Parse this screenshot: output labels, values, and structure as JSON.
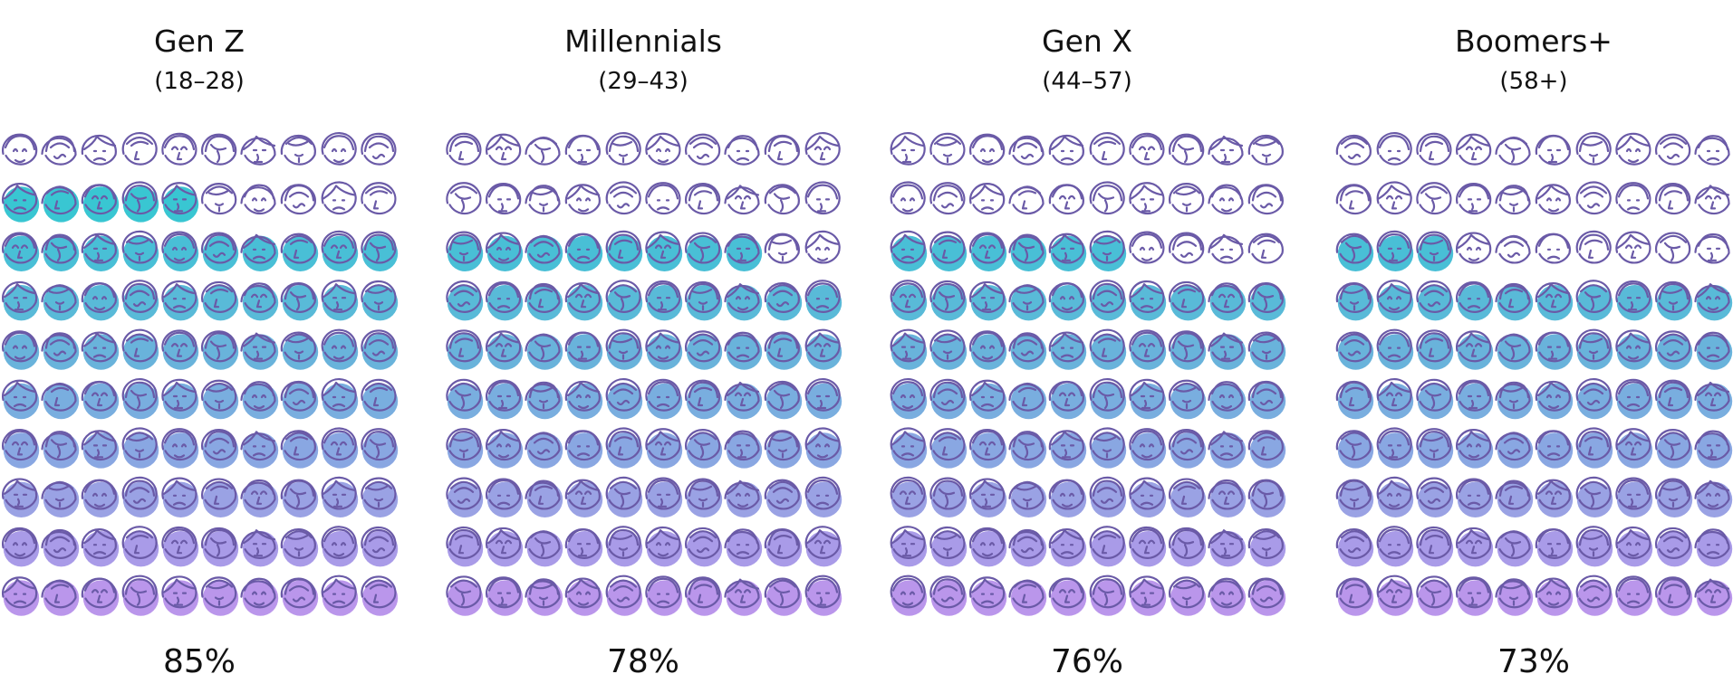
{
  "chart_data": {
    "type": "pictogram",
    "icons_per_panel": 100,
    "grid": "10x10",
    "fill_direction": "bottom-up",
    "colors": {
      "icon_outline": "#6a5aa7",
      "fill_top": "#16c7cb",
      "fill_bottom": "#b48de9"
    },
    "panels": [
      {
        "title": "Gen Z",
        "subtitle": "(18–28)",
        "value": 85,
        "value_label": "85%"
      },
      {
        "title": "Millennials",
        "subtitle": "(29–43)",
        "value": 78,
        "value_label": "78%"
      },
      {
        "title": "Gen X",
        "subtitle": "(44–57)",
        "value": 76,
        "value_label": "76%"
      },
      {
        "title": "Boomers+",
        "subtitle": "(58+)",
        "value": 73,
        "value_label": "73%"
      }
    ]
  }
}
